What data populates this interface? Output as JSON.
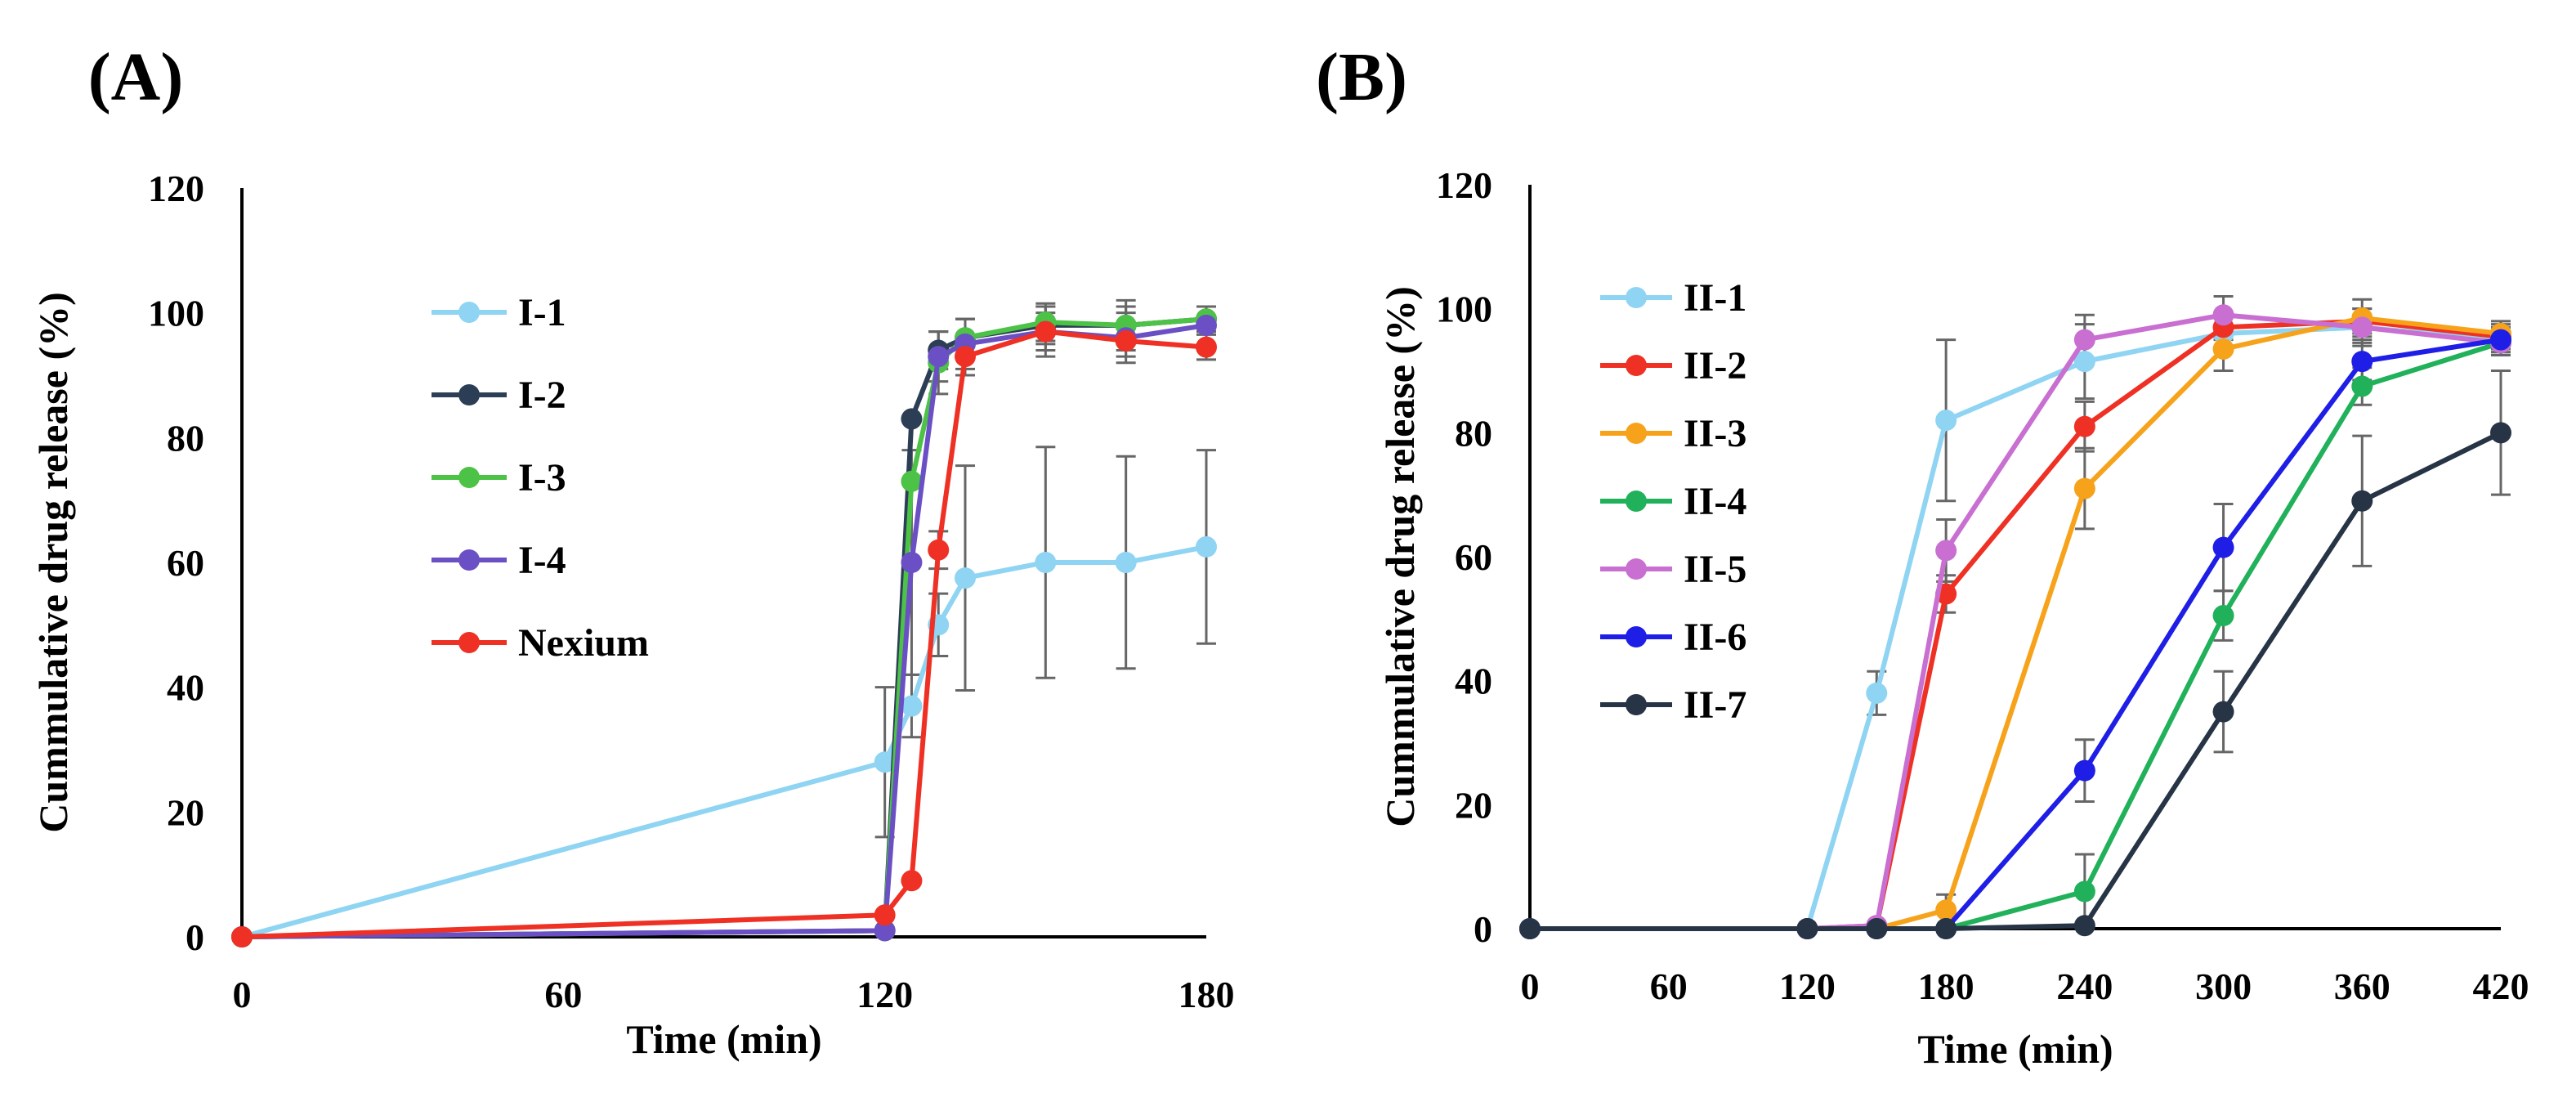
{
  "chart_data": [
    {
      "panel_label": "(A)",
      "type": "line",
      "xlabel": "Time (min)",
      "ylabel": "Cummulative drug release (%)",
      "xlim": [
        0,
        180
      ],
      "ylim": [
        0,
        120
      ],
      "xticks": [
        "0",
        "60",
        "120",
        "180"
      ],
      "yticks": [
        "0",
        "20",
        "40",
        "60",
        "80",
        "100",
        "120"
      ],
      "grid": false,
      "legend_position": "upper-left",
      "series": [
        {
          "name": "I-1",
          "color": "#8fd4f2",
          "x": [
            0,
            120,
            125,
            130,
            135,
            150,
            165,
            180
          ],
          "y": [
            0,
            28,
            37,
            50,
            57.5,
            60,
            60,
            62.5
          ],
          "err": [
            0,
            12,
            5,
            5,
            18,
            18.5,
            17,
            15.5
          ]
        },
        {
          "name": "I-2",
          "color": "#2c3e55",
          "x": [
            0,
            120,
            125,
            130,
            135,
            150,
            165,
            180
          ],
          "y": [
            0,
            1,
            83,
            94,
            96,
            98,
            98,
            99
          ],
          "err": [
            0,
            0,
            0,
            3,
            3,
            3,
            3,
            2
          ]
        },
        {
          "name": "I-3",
          "color": "#4cc247",
          "x": [
            0,
            120,
            125,
            130,
            135,
            150,
            165,
            180
          ],
          "y": [
            0,
            1,
            73,
            92,
            96,
            98.5,
            98,
            99
          ],
          "err": [
            0,
            0,
            0,
            5,
            3,
            3,
            4,
            2
          ]
        },
        {
          "name": "I-4",
          "color": "#6b4fc4",
          "x": [
            0,
            120,
            125,
            130,
            135,
            150,
            165,
            180
          ],
          "y": [
            0,
            1,
            60,
            93,
            95,
            97,
            96,
            98
          ],
          "err": [
            0,
            0,
            18,
            4,
            4,
            4,
            4,
            3
          ]
        },
        {
          "name": "Nexium",
          "color": "#ee3124",
          "x": [
            0,
            120,
            125,
            130,
            135,
            150,
            165,
            180
          ],
          "y": [
            0,
            3.5,
            9,
            62,
            93,
            97,
            95.5,
            94.5
          ],
          "err": [
            0,
            0,
            0,
            3,
            3,
            3,
            2.5,
            2
          ]
        }
      ]
    },
    {
      "panel_label": "(B)",
      "type": "line",
      "xlabel": "Time (min)",
      "ylabel": "Cummulative drug release (%)",
      "xlim": [
        0,
        420
      ],
      "ylim": [
        0,
        120
      ],
      "xticks": [
        "0",
        "60",
        "120",
        "180",
        "240",
        "300",
        "360",
        "420"
      ],
      "yticks": [
        "0",
        "20",
        "40",
        "60",
        "80",
        "100",
        "120"
      ],
      "grid": false,
      "legend_position": "upper-left",
      "series": [
        {
          "name": "II-1",
          "color": "#8fd4f2",
          "x": [
            0,
            120,
            150,
            180,
            240,
            300,
            360,
            420
          ],
          "y": [
            0,
            0,
            38,
            82,
            91.5,
            96,
            97,
            95
          ],
          "err": [
            0,
            0,
            3.5,
            13,
            6,
            3,
            3,
            2
          ]
        },
        {
          "name": "II-2",
          "color": "#ee3124",
          "x": [
            0,
            120,
            150,
            180,
            240,
            300,
            360,
            420
          ],
          "y": [
            0,
            0,
            0.5,
            54,
            81,
            97,
            98,
            95.5
          ],
          "err": [
            0,
            0,
            0,
            3,
            4,
            2,
            2,
            2
          ]
        },
        {
          "name": "II-3",
          "color": "#f7a21b",
          "x": [
            0,
            120,
            150,
            180,
            240,
            300,
            360,
            420
          ],
          "y": [
            0,
            0,
            0,
            3,
            71,
            93.5,
            98.5,
            96
          ],
          "err": [
            0,
            0,
            0,
            2.5,
            6.5,
            3.5,
            3,
            2
          ]
        },
        {
          "name": "II-4",
          "color": "#20b15a",
          "x": [
            0,
            120,
            150,
            180,
            240,
            300,
            360,
            420
          ],
          "y": [
            0,
            0,
            0,
            0,
            6,
            50.5,
            87.5,
            94.5
          ],
          "err": [
            0,
            0,
            0,
            0,
            6,
            4,
            3,
            2
          ]
        },
        {
          "name": "II-5",
          "color": "#c86fd1",
          "x": [
            0,
            120,
            150,
            180,
            240,
            300,
            360,
            420
          ],
          "y": [
            0,
            0,
            0.5,
            61,
            95,
            99,
            97,
            94.5
          ],
          "err": [
            0,
            0,
            0,
            5,
            4,
            3,
            2,
            2
          ]
        },
        {
          "name": "II-6",
          "color": "#1e1ee6",
          "x": [
            0,
            120,
            150,
            180,
            240,
            300,
            360,
            420
          ],
          "y": [
            0,
            0,
            0,
            0,
            25.5,
            61.5,
            91.5,
            95
          ],
          "err": [
            0,
            0,
            0,
            0,
            5,
            7,
            3,
            2
          ]
        },
        {
          "name": "II-7",
          "color": "#263445",
          "x": [
            0,
            120,
            150,
            180,
            240,
            300,
            360,
            420
          ],
          "y": [
            0,
            0,
            0,
            0,
            0.5,
            35,
            69,
            80
          ],
          "err": [
            0,
            0,
            0,
            0,
            0,
            6.5,
            10.5,
            10
          ]
        }
      ]
    }
  ]
}
